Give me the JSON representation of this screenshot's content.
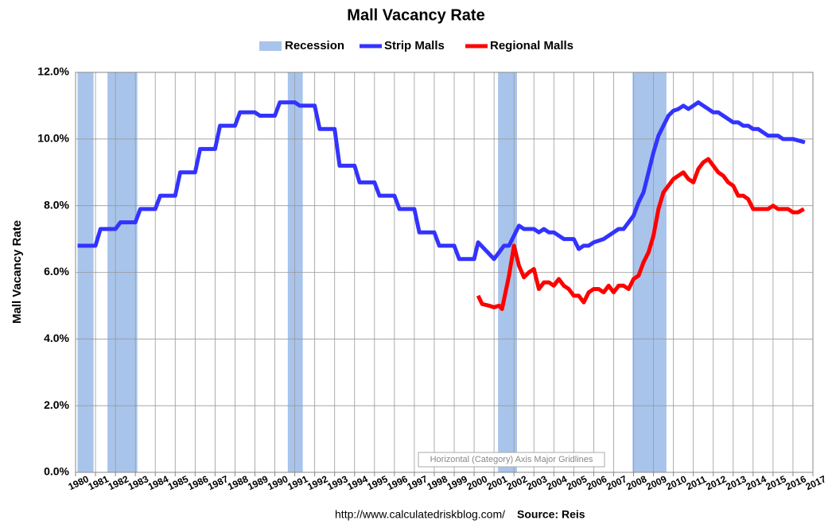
{
  "chart_data": {
    "type": "line",
    "title": "Mall Vacancy Rate",
    "y_label": "Mall Vacancy Rate",
    "source_url": "http://www.calculatedriskblog.com/",
    "source": "Source: Reis",
    "tooltip": "Horizontal (Category) Axis Major Gridlines",
    "xlim": [
      1980,
      2017
    ],
    "xticks": [
      1980,
      1981,
      1982,
      1983,
      1984,
      1985,
      1986,
      1987,
      1988,
      1989,
      1990,
      1991,
      1992,
      1993,
      1994,
      1995,
      1996,
      1997,
      1998,
      1999,
      2000,
      2001,
      2002,
      2003,
      2004,
      2005,
      2006,
      2007,
      2008,
      2009,
      2010,
      2011,
      2012,
      2013,
      2014,
      2015,
      2016,
      2017
    ],
    "ylim": [
      0,
      12
    ],
    "yticks": [
      {
        "value": 0,
        "label": "0.0%"
      },
      {
        "value": 2,
        "label": "2.0%"
      },
      {
        "value": 4,
        "label": "4.0%"
      },
      {
        "value": 6,
        "label": "6.0%"
      },
      {
        "value": 8,
        "label": "8.0%"
      },
      {
        "value": 10,
        "label": "10.0%"
      },
      {
        "value": 12,
        "label": "12.0%"
      }
    ],
    "grid": true,
    "recession": {
      "name": "Recession",
      "color": "#a9c4eb",
      "periods": [
        {
          "start": 1980.1,
          "end": 1980.9
        },
        {
          "start": 1981.6,
          "end": 1983.1
        },
        {
          "start": 1990.65,
          "end": 1991.4
        },
        {
          "start": 2001.2,
          "end": 2002.15
        },
        {
          "start": 2007.95,
          "end": 2009.65
        }
      ]
    },
    "series": [
      {
        "name": "Strip Malls",
        "color": "#3333ff",
        "x": [
          1980.1,
          1981,
          1981.25,
          1982,
          1982.25,
          1983,
          1983.25,
          1984,
          1984.25,
          1985,
          1985.25,
          1986,
          1986.25,
          1987,
          1987.25,
          1988,
          1988.25,
          1989,
          1989.25,
          1990,
          1990.25,
          1991,
          1991.25,
          1992,
          1992.25,
          1993,
          1993.25,
          1994,
          1994.25,
          1995,
          1995.25,
          1996,
          1996.25,
          1997,
          1997.25,
          1998,
          1998.25,
          1999,
          1999.25,
          2000,
          2000.2,
          2001,
          2001.5,
          2001.75,
          2002.25,
          2002.5,
          2003,
          2003.25,
          2003.5,
          2003.75,
          2004,
          2004.5,
          2005,
          2005.25,
          2005.5,
          2005.75,
          2006,
          2006.5,
          2007,
          2007.25,
          2007.5,
          2008,
          2008.25,
          2008.5,
          2008.75,
          2009,
          2009.25,
          2009.5,
          2009.75,
          2010,
          2010.25,
          2010.5,
          2010.75,
          2011,
          2011.25,
          2011.5,
          2011.75,
          2012,
          2012.25,
          2012.5,
          2012.75,
          2013,
          2013.25,
          2013.5,
          2013.75,
          2014,
          2014.25,
          2014.5,
          2014.75,
          2015,
          2015.25,
          2015.5,
          2015.75,
          2016,
          2016.3,
          2016.6
        ],
        "values": [
          6.8,
          6.8,
          7.3,
          7.3,
          7.5,
          7.5,
          7.9,
          7.9,
          8.3,
          8.3,
          9.0,
          9.0,
          9.7,
          9.7,
          10.4,
          10.4,
          10.8,
          10.8,
          10.7,
          10.7,
          11.1,
          11.1,
          11.0,
          11.0,
          10.3,
          10.3,
          9.2,
          9.2,
          8.7,
          8.7,
          8.3,
          8.3,
          7.9,
          7.9,
          7.2,
          7.2,
          6.8,
          6.8,
          6.4,
          6.4,
          6.9,
          6.4,
          6.8,
          6.8,
          7.4,
          7.3,
          7.3,
          7.2,
          7.3,
          7.2,
          7.2,
          7.0,
          7.0,
          6.7,
          6.8,
          6.8,
          6.9,
          7.0,
          7.2,
          7.3,
          7.3,
          7.7,
          8.1,
          8.4,
          9.0,
          9.6,
          10.1,
          10.4,
          10.7,
          10.85,
          10.9,
          11.0,
          10.9,
          11.0,
          11.1,
          11.0,
          10.9,
          10.8,
          10.8,
          10.7,
          10.6,
          10.5,
          10.5,
          10.4,
          10.4,
          10.3,
          10.3,
          10.2,
          10.1,
          10.1,
          10.1,
          10.0,
          10.0,
          10.0,
          9.95,
          9.9
        ]
      },
      {
        "name": "Regional Malls",
        "color": "#ff0000",
        "x": [
          2000.2,
          2000.4,
          2000.75,
          2001,
          2001.25,
          2001.4,
          2001.75,
          2002,
          2002.25,
          2002.5,
          2002.75,
          2003,
          2003.25,
          2003.5,
          2003.75,
          2004,
          2004.25,
          2004.5,
          2004.75,
          2005,
          2005.25,
          2005.5,
          2005.75,
          2006,
          2006.25,
          2006.5,
          2006.75,
          2007,
          2007.25,
          2007.5,
          2007.75,
          2008,
          2008.25,
          2008.5,
          2008.75,
          2009,
          2009.25,
          2009.5,
          2009.75,
          2010,
          2010.25,
          2010.5,
          2010.75,
          2011,
          2011.25,
          2011.5,
          2011.75,
          2012,
          2012.25,
          2012.5,
          2012.75,
          2013,
          2013.25,
          2013.5,
          2013.75,
          2014,
          2014.25,
          2014.5,
          2014.75,
          2015,
          2015.25,
          2015.5,
          2015.75,
          2016,
          2016.25,
          2016.55
        ],
        "values": [
          5.3,
          5.05,
          5.0,
          4.95,
          5.0,
          4.9,
          5.9,
          6.8,
          6.2,
          5.85,
          6.0,
          6.1,
          5.5,
          5.7,
          5.7,
          5.6,
          5.8,
          5.6,
          5.5,
          5.3,
          5.3,
          5.1,
          5.4,
          5.5,
          5.5,
          5.4,
          5.6,
          5.4,
          5.6,
          5.6,
          5.5,
          5.8,
          5.9,
          6.3,
          6.6,
          7.1,
          7.9,
          8.4,
          8.6,
          8.8,
          8.9,
          9.0,
          8.8,
          8.7,
          9.1,
          9.3,
          9.4,
          9.2,
          9.0,
          8.9,
          8.7,
          8.6,
          8.3,
          8.3,
          8.2,
          7.9,
          7.9,
          7.9,
          7.9,
          8.0,
          7.9,
          7.9,
          7.9,
          7.8,
          7.8,
          7.9
        ]
      }
    ]
  }
}
